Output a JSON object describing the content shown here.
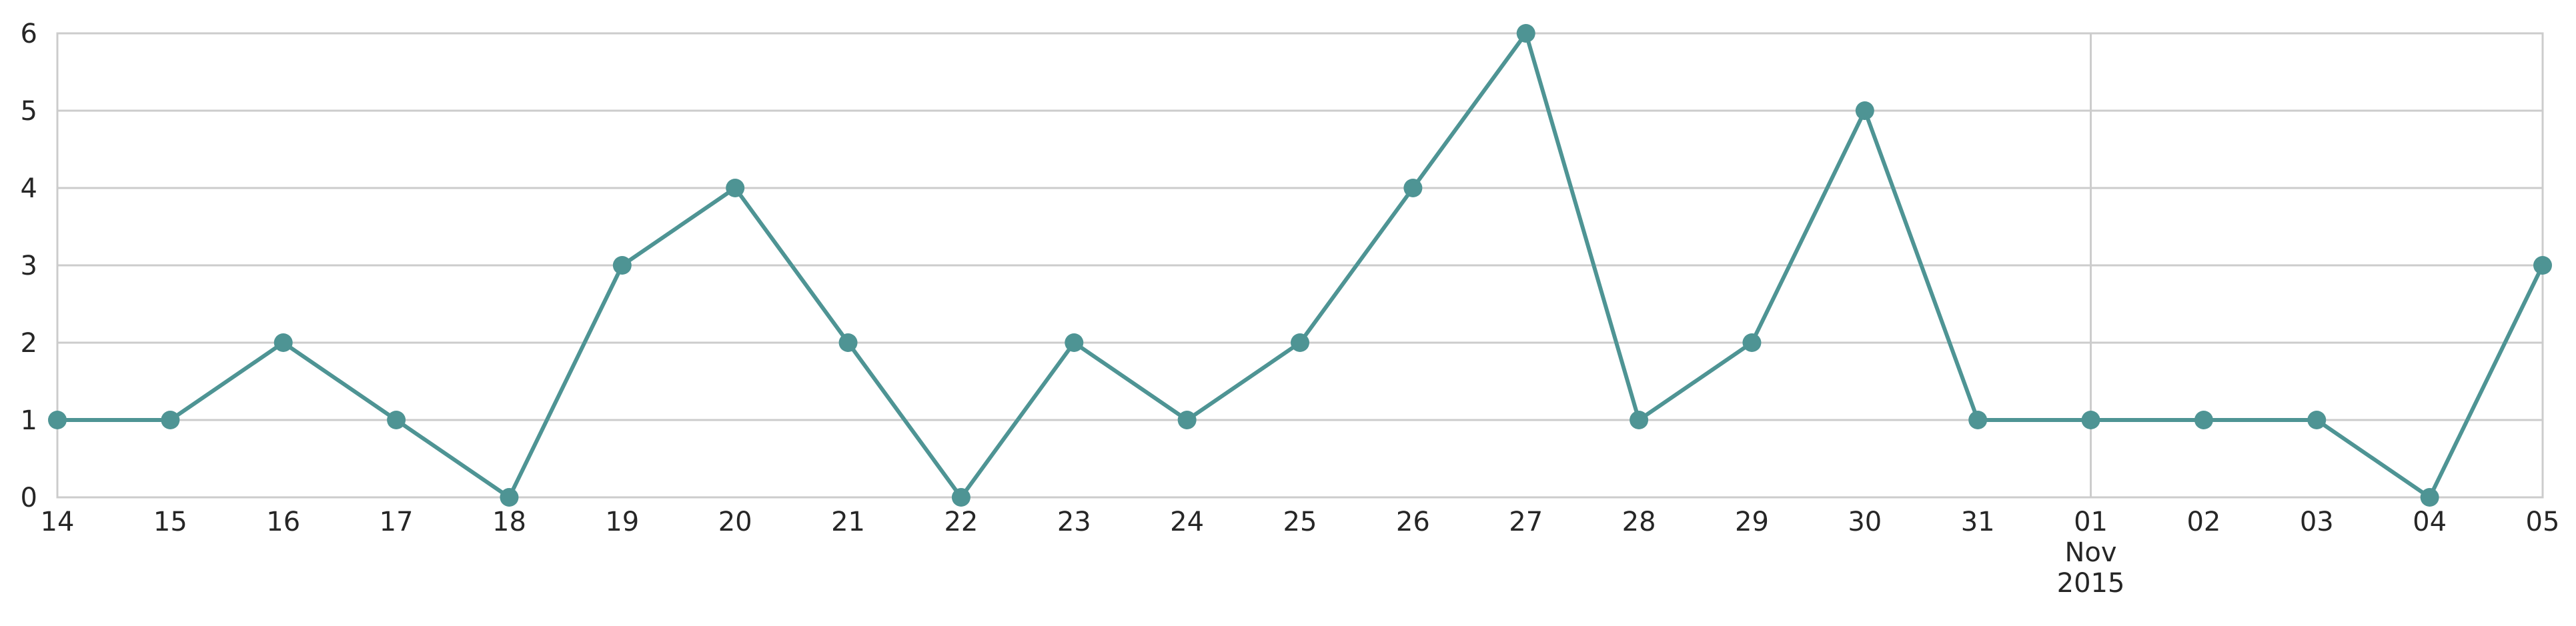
{
  "chart_data": {
    "type": "line",
    "title": "",
    "xlabel": "",
    "ylabel": "",
    "x": [
      "2015-10-14",
      "2015-10-15",
      "2015-10-16",
      "2015-10-17",
      "2015-10-18",
      "2015-10-19",
      "2015-10-20",
      "2015-10-21",
      "2015-10-22",
      "2015-10-23",
      "2015-10-24",
      "2015-10-25",
      "2015-10-26",
      "2015-10-27",
      "2015-10-28",
      "2015-10-29",
      "2015-10-30",
      "2015-10-31",
      "2015-11-01",
      "2015-11-02",
      "2015-11-03",
      "2015-11-04",
      "2015-11-05"
    ],
    "x_tick_labels": [
      "14",
      "15",
      "16",
      "17",
      "18",
      "19",
      "20",
      "21",
      "22",
      "23",
      "24",
      "25",
      "26",
      "27",
      "28",
      "29",
      "30",
      "31",
      "01",
      "02",
      "03",
      "04",
      "05"
    ],
    "x_tick_sublabels": {
      "01": [
        "Nov",
        "2015"
      ]
    },
    "series": [
      {
        "values": [
          1,
          1,
          2,
          1,
          0,
          3,
          4,
          2,
          0,
          2,
          1,
          2,
          4,
          6,
          1,
          2,
          5,
          1,
          1,
          1,
          1,
          0,
          3
        ]
      }
    ],
    "ylim": [
      0,
      6
    ],
    "yticks": [
      0,
      1,
      2,
      3,
      4,
      5,
      6
    ],
    "grid": true,
    "legend": "none",
    "colors": {
      "line": "#4e9494",
      "grid": "#cccccc",
      "text": "#262626"
    }
  }
}
